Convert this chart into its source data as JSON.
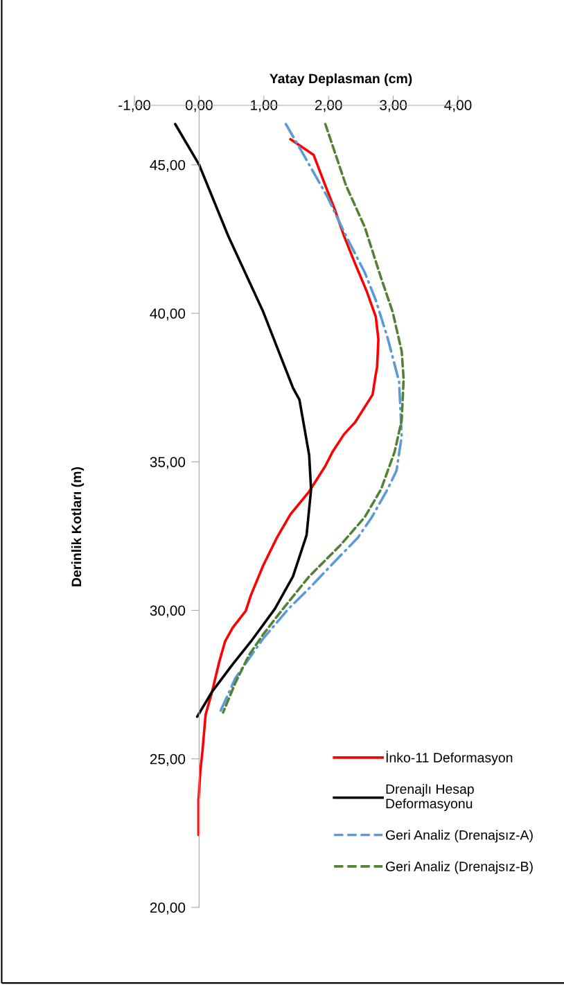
{
  "chart_data": {
    "type": "line",
    "xlabel": "Yatay Deplasman (cm)",
    "ylabel": "Derinlik Kotları (m)",
    "xlim": [
      -1,
      4
    ],
    "xticks": [
      {
        "value": -1,
        "label": "-1,00"
      },
      {
        "value": 0,
        "label": "0,00"
      },
      {
        "value": 1,
        "label": "1,00"
      },
      {
        "value": 2,
        "label": "2,00"
      },
      {
        "value": 3,
        "label": "3,00"
      },
      {
        "value": 4,
        "label": "4,00"
      }
    ],
    "ylim": [
      20,
      47
    ],
    "yticks": [
      {
        "value": 20,
        "label": "20,00"
      },
      {
        "value": 25,
        "label": "25,00"
      },
      {
        "value": 30,
        "label": "30,00"
      },
      {
        "value": 35,
        "label": "35,00"
      },
      {
        "value": 40,
        "label": "40,00"
      },
      {
        "value": 45,
        "label": "45,00"
      }
    ],
    "grid": false,
    "legend": "bottom right",
    "marker": "none",
    "series": [
      {
        "name": "İnko-11 Deformasyon",
        "color": "#ff0000",
        "line_style": "solid",
        "x": [
          1.41,
          1.77,
          1.95,
          2.09,
          2.24,
          2.41,
          2.59,
          2.73,
          2.77,
          2.75,
          2.73,
          2.68,
          2.41,
          2.24,
          2.06,
          1.95,
          1.7,
          1.41,
          1.2,
          0.99,
          0.8,
          0.72,
          0.52,
          0.4,
          0.31,
          0.2,
          0.1,
          0.05,
          0.02,
          -0.01,
          -0.01
        ],
        "values": [
          45.86,
          45.33,
          44.3,
          43.53,
          42.6,
          41.67,
          40.74,
          39.88,
          39.12,
          38.19,
          37.95,
          37.26,
          36.33,
          35.93,
          35.33,
          34.86,
          34.0,
          33.23,
          32.44,
          31.51,
          30.51,
          29.98,
          29.42,
          28.95,
          28.26,
          27.26,
          26.49,
          25.23,
          24.63,
          23.6,
          22.44
        ]
      },
      {
        "name": "Drenajlı Hesap\nDeformasyonu",
        "color": "#000000",
        "line_style": "solid",
        "x": [
          -0.37,
          0.0,
          0.45,
          0.99,
          1.45,
          1.55,
          1.7,
          1.73,
          1.66,
          1.45,
          1.17,
          0.8,
          0.52,
          0.2,
          -0.03
        ],
        "values": [
          46.37,
          45.0,
          42.6,
          40.05,
          37.49,
          37.09,
          35.23,
          34.07,
          32.53,
          31.14,
          30.05,
          28.95,
          28.19,
          27.26,
          26.42
        ]
      },
      {
        "name": "Geri Analiz (Drenajsız-A)",
        "color": "#5b9bd5",
        "line_style": "dashdot",
        "x": [
          1.34,
          1.55,
          1.66,
          1.98,
          2.27,
          2.56,
          2.73,
          2.91,
          3.09,
          3.13,
          3.05,
          2.91,
          2.67,
          2.45,
          2.13,
          1.7,
          1.38,
          0.99,
          0.56,
          0.31
        ],
        "values": [
          46.37,
          45.58,
          45.16,
          43.93,
          42.6,
          41.37,
          40.44,
          39.19,
          37.7,
          35.86,
          34.7,
          34.07,
          33.14,
          32.44,
          31.72,
          30.74,
          30.05,
          29.05,
          27.72,
          26.51
        ]
      },
      {
        "name": "Geri Analiz (Drenajsız-B)",
        "color": "#548235",
        "line_style": "dashed",
        "x": [
          1.95,
          2.27,
          2.56,
          2.81,
          2.99,
          3.13,
          3.16,
          3.13,
          3.02,
          2.81,
          2.56,
          2.19,
          1.7,
          1.27,
          0.99,
          0.77,
          0.56,
          0.37
        ],
        "values": [
          46.37,
          44.3,
          42.9,
          41.2,
          40.05,
          38.72,
          37.79,
          36.4,
          35.33,
          34.07,
          33.14,
          32.21,
          31.14,
          29.98,
          29.19,
          28.49,
          27.56,
          26.56
        ]
      }
    ]
  }
}
